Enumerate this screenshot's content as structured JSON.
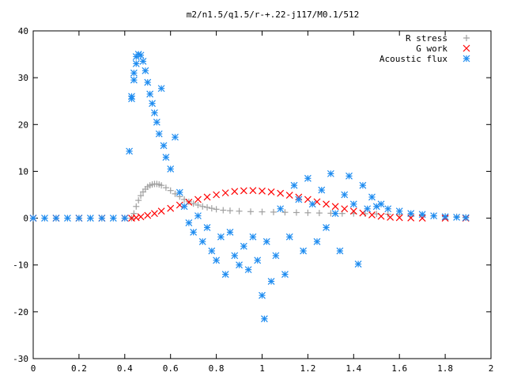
{
  "chart_data": {
    "type": "scatter",
    "title": "m2/n1.5/q1.5/r-+.22-j117/M0.1/512",
    "xlabel": "",
    "ylabel": "",
    "xlim": [
      0,
      2
    ],
    "ylim": [
      -30,
      40
    ],
    "x_ticks": [
      "0",
      "0.2",
      "0.4",
      "0.6",
      "0.8",
      "1",
      "1.2",
      "1.4",
      "1.6",
      "1.8",
      "2"
    ],
    "y_ticks": [
      "40",
      "30",
      "20",
      "10",
      "0",
      "-10",
      "-20",
      "-30"
    ],
    "grid": false,
    "legend_position": "top-right",
    "legend": [
      "R stress",
      "G work",
      "Acoustic flux"
    ],
    "series": [
      {
        "name": "R stress",
        "marker": "plus",
        "color": "#a0a0a0",
        "points": [
          [
            0.0,
            0
          ],
          [
            0.05,
            0
          ],
          [
            0.1,
            0
          ],
          [
            0.15,
            0
          ],
          [
            0.2,
            0
          ],
          [
            0.25,
            0
          ],
          [
            0.3,
            0
          ],
          [
            0.35,
            0
          ],
          [
            0.4,
            0
          ],
          [
            0.43,
            0
          ],
          [
            0.44,
            1.0
          ],
          [
            0.45,
            2.5
          ],
          [
            0.46,
            3.8
          ],
          [
            0.47,
            4.8
          ],
          [
            0.48,
            5.6
          ],
          [
            0.49,
            6.2
          ],
          [
            0.5,
            6.7
          ],
          [
            0.51,
            7.0
          ],
          [
            0.52,
            7.2
          ],
          [
            0.53,
            7.3
          ],
          [
            0.54,
            7.3
          ],
          [
            0.55,
            7.2
          ],
          [
            0.56,
            7.0
          ],
          [
            0.58,
            6.5
          ],
          [
            0.6,
            5.9
          ],
          [
            0.62,
            5.2
          ],
          [
            0.64,
            4.6
          ],
          [
            0.66,
            4.0
          ],
          [
            0.68,
            3.5
          ],
          [
            0.7,
            3.1
          ],
          [
            0.72,
            2.8
          ],
          [
            0.74,
            2.5
          ],
          [
            0.76,
            2.3
          ],
          [
            0.78,
            2.1
          ],
          [
            0.8,
            1.9
          ],
          [
            0.83,
            1.7
          ],
          [
            0.86,
            1.6
          ],
          [
            0.9,
            1.5
          ],
          [
            0.95,
            1.4
          ],
          [
            1.0,
            1.35
          ],
          [
            1.05,
            1.3
          ],
          [
            1.1,
            1.25
          ],
          [
            1.15,
            1.2
          ],
          [
            1.2,
            1.15
          ],
          [
            1.25,
            1.1
          ],
          [
            1.3,
            1.05
          ],
          [
            1.35,
            1.0
          ],
          [
            1.4,
            1.0
          ],
          [
            1.45,
            0.95
          ],
          [
            1.5,
            0.9
          ],
          [
            1.55,
            0.85
          ],
          [
            1.6,
            0.8
          ],
          [
            1.65,
            0.7
          ],
          [
            1.7,
            0.6
          ],
          [
            1.75,
            0.5
          ],
          [
            1.8,
            0.4
          ],
          [
            1.85,
            0.3
          ],
          [
            1.89,
            0.2
          ]
        ]
      },
      {
        "name": "G work",
        "marker": "cross",
        "color": "#ff0000",
        "points": [
          [
            0.0,
            0
          ],
          [
            0.1,
            0
          ],
          [
            0.2,
            0
          ],
          [
            0.3,
            0
          ],
          [
            0.4,
            0
          ],
          [
            0.43,
            0
          ],
          [
            0.45,
            0.1
          ],
          [
            0.47,
            0.3
          ],
          [
            0.5,
            0.6
          ],
          [
            0.53,
            1.0
          ],
          [
            0.56,
            1.5
          ],
          [
            0.6,
            2.1
          ],
          [
            0.64,
            2.8
          ],
          [
            0.68,
            3.4
          ],
          [
            0.72,
            4.0
          ],
          [
            0.76,
            4.5
          ],
          [
            0.8,
            5.0
          ],
          [
            0.84,
            5.4
          ],
          [
            0.88,
            5.7
          ],
          [
            0.92,
            5.85
          ],
          [
            0.96,
            5.9
          ],
          [
            1.0,
            5.8
          ],
          [
            1.04,
            5.6
          ],
          [
            1.08,
            5.3
          ],
          [
            1.12,
            4.9
          ],
          [
            1.16,
            4.5
          ],
          [
            1.2,
            4.0
          ],
          [
            1.24,
            3.5
          ],
          [
            1.28,
            3.0
          ],
          [
            1.32,
            2.5
          ],
          [
            1.36,
            2.0
          ],
          [
            1.4,
            1.5
          ],
          [
            1.44,
            1.1
          ],
          [
            1.48,
            0.7
          ],
          [
            1.52,
            0.4
          ],
          [
            1.56,
            0.2
          ],
          [
            1.6,
            0.1
          ],
          [
            1.65,
            0.05
          ],
          [
            1.7,
            0
          ],
          [
            1.8,
            0
          ],
          [
            1.89,
            0
          ]
        ]
      },
      {
        "name": "Acoustic flux",
        "marker": "star",
        "color": "#1e8cf0",
        "points": [
          [
            0.0,
            0
          ],
          [
            0.05,
            0
          ],
          [
            0.1,
            0
          ],
          [
            0.15,
            0
          ],
          [
            0.2,
            0
          ],
          [
            0.25,
            0
          ],
          [
            0.3,
            0
          ],
          [
            0.35,
            0
          ],
          [
            0.4,
            0
          ],
          [
            0.42,
            14.3
          ],
          [
            0.43,
            25.5
          ],
          [
            0.43,
            26
          ],
          [
            0.44,
            29.5
          ],
          [
            0.44,
            31
          ],
          [
            0.45,
            33
          ],
          [
            0.45,
            34.5
          ],
          [
            0.46,
            35
          ],
          [
            0.47,
            34.8
          ],
          [
            0.48,
            33.5
          ],
          [
            0.49,
            31.5
          ],
          [
            0.5,
            29
          ],
          [
            0.51,
            26.5
          ],
          [
            0.52,
            24.5
          ],
          [
            0.53,
            22.5
          ],
          [
            0.54,
            20.5
          ],
          [
            0.55,
            18
          ],
          [
            0.56,
            27.7
          ],
          [
            0.57,
            15.5
          ],
          [
            0.58,
            13
          ],
          [
            0.6,
            10.5
          ],
          [
            0.62,
            17.3
          ],
          [
            0.64,
            5.5
          ],
          [
            0.66,
            2.5
          ],
          [
            0.68,
            -1
          ],
          [
            0.7,
            -3
          ],
          [
            0.72,
            0.5
          ],
          [
            0.74,
            -5
          ],
          [
            0.76,
            -2
          ],
          [
            0.78,
            -7
          ],
          [
            0.8,
            -9
          ],
          [
            0.82,
            -4
          ],
          [
            0.84,
            -12
          ],
          [
            0.86,
            -3
          ],
          [
            0.88,
            -8
          ],
          [
            0.9,
            -10
          ],
          [
            0.92,
            -6
          ],
          [
            0.94,
            -11
          ],
          [
            0.96,
            -4
          ],
          [
            0.98,
            -9
          ],
          [
            1.0,
            -16.5
          ],
          [
            1.01,
            -21.5
          ],
          [
            1.02,
            -5
          ],
          [
            1.04,
            -13.5
          ],
          [
            1.06,
            -8
          ],
          [
            1.08,
            2
          ],
          [
            1.1,
            -12
          ],
          [
            1.12,
            -4
          ],
          [
            1.14,
            7
          ],
          [
            1.16,
            4
          ],
          [
            1.18,
            -7
          ],
          [
            1.2,
            8.5
          ],
          [
            1.22,
            3
          ],
          [
            1.24,
            -5
          ],
          [
            1.26,
            6
          ],
          [
            1.28,
            -2
          ],
          [
            1.3,
            9.5
          ],
          [
            1.32,
            1
          ],
          [
            1.34,
            -7
          ],
          [
            1.36,
            5
          ],
          [
            1.38,
            9
          ],
          [
            1.4,
            3
          ],
          [
            1.42,
            -9.8
          ],
          [
            1.44,
            7
          ],
          [
            1.46,
            2
          ],
          [
            1.48,
            4.5
          ],
          [
            1.5,
            2.5
          ],
          [
            1.52,
            3
          ],
          [
            1.55,
            2
          ],
          [
            1.6,
            1.5
          ],
          [
            1.65,
            1
          ],
          [
            1.7,
            0.8
          ],
          [
            1.75,
            0.5
          ],
          [
            1.8,
            0.3
          ],
          [
            1.85,
            0.2
          ],
          [
            1.89,
            0.1
          ]
        ]
      }
    ]
  }
}
